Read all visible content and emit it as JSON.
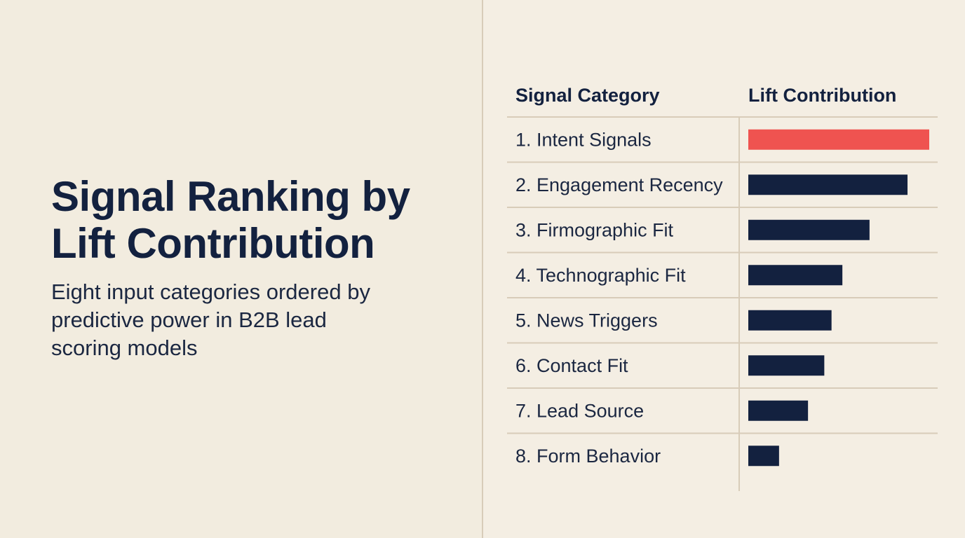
{
  "heading": {
    "title": "Signal Ranking by Lift Contribution",
    "subtitle": "Eight input categories ordered by predictive power in B2B lead scoring models"
  },
  "chart_data": {
    "type": "bar",
    "orientation": "horizontal",
    "columns": {
      "category": "Signal Category",
      "value": "Lift Contribution"
    },
    "categories": [
      "1. Intent Signals",
      "2. Engagement Recency",
      "3. Firmographic Fit",
      "4. Technographic Fit",
      "5. News Triggers",
      "6. Contact Fit",
      "7. Lead Source",
      "8. Form Behavior"
    ],
    "values": [
      100,
      88,
      67,
      52,
      46,
      42,
      33,
      17
    ],
    "highlight_color": "#ef5350",
    "bar_color": "#13213f",
    "grid": false,
    "legend": "none"
  }
}
